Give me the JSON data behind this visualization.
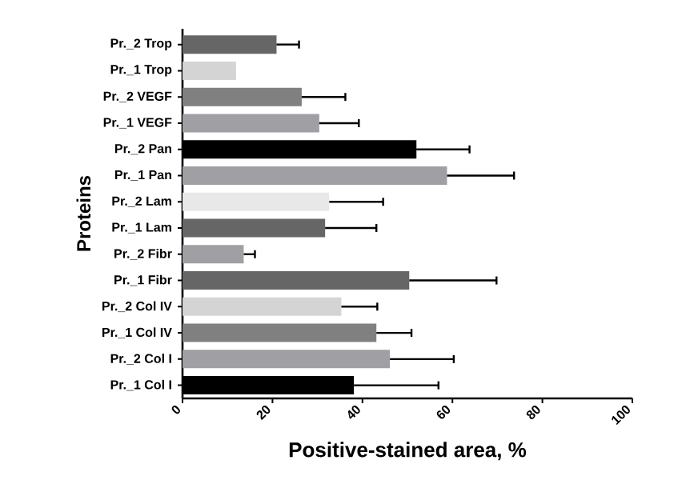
{
  "chart_data": {
    "type": "bar",
    "orientation": "horizontal",
    "xlabel": "Positive-stained area, %",
    "ylabel": "Proteins",
    "categories": [
      "Pr._2 Trop",
      "Pr._1 Trop",
      "Pr._2 VEGF",
      "Pr._1 VEGF",
      "Pr._2 Pan",
      "Pr._1 Pan",
      "Pr._2 Lam",
      "Pr._1 Lam",
      "Pr._2 Fibr",
      "Pr._1 Fibr",
      "Pr._2 Col IV",
      "Pr._1 Col IV",
      "Pr._2 Col I",
      "Pr._1 Col I"
    ],
    "values": [
      20.9,
      11.9,
      26.5,
      30.4,
      52,
      58.8,
      32.6,
      31.7,
      13.6,
      50.4,
      35.3,
      43.1,
      46.1,
      38.1
    ],
    "errors": [
      5,
      null,
      9.7,
      8.8,
      11.8,
      14.9,
      12,
      11.4,
      2.5,
      19.4,
      8,
      7.8,
      14.2,
      18.8
    ],
    "colors": [
      "#666666",
      "#d4d4d4",
      "#808080",
      "#a0a0a4",
      "#000000",
      "#a0a0a4",
      "#e8e8e8",
      "#666666",
      "#a0a0a4",
      "#666666",
      "#d4d4d4",
      "#808080",
      "#a0a0a4",
      "#000000"
    ],
    "xlim": [
      0,
      100
    ],
    "xticks": [
      0,
      20,
      40,
      60,
      80,
      100
    ]
  }
}
